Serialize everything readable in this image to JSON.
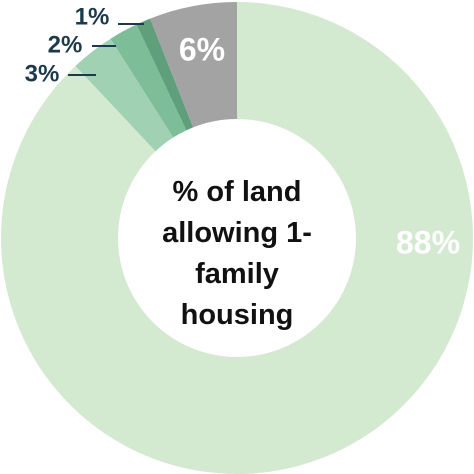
{
  "chart_data": {
    "type": "donut",
    "title": "% of land allowing 1-family housing",
    "values": [
      88,
      3,
      2,
      1,
      6
    ],
    "value_labels": [
      "88%",
      "3%",
      "2%",
      "1%",
      "6%"
    ],
    "colors": [
      "#d3e9d0",
      "#9fd1b2",
      "#7dbd97",
      "#5f9f7c",
      "#a3a3a3"
    ],
    "label_colors": [
      "#ffffff",
      "#1c3a4c",
      "#1c3a4c",
      "#1c3a4c",
      "#ffffff"
    ]
  }
}
